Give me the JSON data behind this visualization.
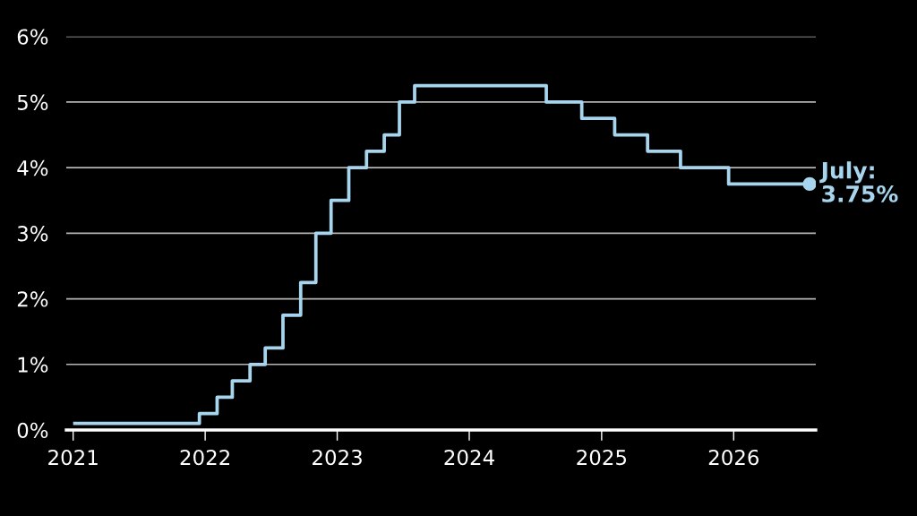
{
  "chart_data": {
    "type": "step",
    "x": [
      "2021-01-01",
      "2021-12-16",
      "2022-02-03",
      "2022-03-17",
      "2022-05-05",
      "2022-06-16",
      "2022-08-04",
      "2022-09-22",
      "2022-11-03",
      "2022-12-15",
      "2023-02-02",
      "2023-03-23",
      "2023-05-11",
      "2023-06-22",
      "2023-08-03",
      "2024-08-01",
      "2024-11-07",
      "2025-02-06",
      "2025-05-08",
      "2025-08-07",
      "2025-12-18",
      "2026-07-30"
    ],
    "series": [
      {
        "color": "#a8d5ee",
        "line_style": "solid",
        "values": [
          0.1,
          0.25,
          0.5,
          0.75,
          1.0,
          1.25,
          1.75,
          2.25,
          3.0,
          3.5,
          4.0,
          4.25,
          4.5,
          5.0,
          5.25,
          5.0,
          4.75,
          4.5,
          4.25,
          4.0,
          3.75,
          3.75
        ]
      },
      {
        "type": "scatter",
        "color": "#a8d5ee",
        "marker": "circle",
        "x": [
          "2026-07-30"
        ],
        "values": [
          3.75
        ]
      }
    ],
    "xlim": [
      "2020-12-13",
      "2026-08-16"
    ],
    "xticks": [
      "2021",
      "2022",
      "2023",
      "2024",
      "2025",
      "2026"
    ],
    "ylim": [
      0,
      6
    ],
    "yticks": [
      {
        "value": 0,
        "label": "0%"
      },
      {
        "value": 1,
        "label": "1%"
      },
      {
        "value": 2,
        "label": "2%"
      },
      {
        "value": 3,
        "label": "3%"
      },
      {
        "value": 4,
        "label": "4%"
      },
      {
        "value": 5,
        "label": "5%"
      },
      {
        "value": 6,
        "label": "6%"
      }
    ],
    "grid": "y",
    "annotations": [
      {
        "text": "July:\n3.75%",
        "x": "2026-07-30",
        "y": 3.75
      }
    ]
  }
}
